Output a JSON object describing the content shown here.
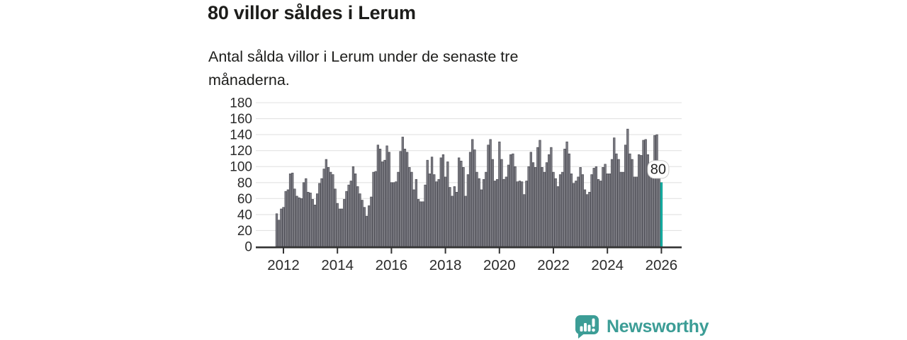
{
  "title": "80 villor såldes i Lerum",
  "subtitle": "Antal sålda villor i Lerum under de senaste tre månaderna.",
  "branding": {
    "name": "Newsworthy",
    "icon": "bar-chart-speech-bubble-icon"
  },
  "colors": {
    "bar": "#7d7d84",
    "bar_stroke": "#4c4c54",
    "highlight": "#14b2a6",
    "highlight_stroke": "#0d948a",
    "axis": "#333333",
    "grid": "#e2e2e2",
    "title_text": "#1d1d1b",
    "tick_text": "#2b2b2b",
    "brand": "#3c9d96",
    "annotation_bg": "#ffffff",
    "annotation_border": "#cccccc",
    "annotation_text": "#222222"
  },
  "annotation": {
    "label": "80"
  },
  "chart_data": {
    "type": "bar",
    "title": "80 villor såldes i Lerum",
    "subtitle": "Antal sålda villor i Lerum under de senaste tre månaderna.",
    "xlabel": "",
    "ylabel": "",
    "frequency": "monthly",
    "x_start": "2011-10",
    "x_end": "2026-01",
    "ylim": [
      0,
      180
    ],
    "y_ticks": [
      0,
      20,
      40,
      60,
      80,
      100,
      120,
      140,
      160,
      180
    ],
    "x_tick_years": [
      2012,
      2014,
      2016,
      2018,
      2020,
      2022,
      2024,
      2026
    ],
    "grid": "horizontal",
    "legend": "none",
    "values": [
      41,
      33,
      47,
      49,
      69,
      71,
      91,
      92,
      72,
      63,
      61,
      60,
      80,
      85,
      68,
      67,
      59,
      52,
      66,
      79,
      85,
      97,
      109,
      99,
      93,
      90,
      72,
      54,
      47,
      47,
      59,
      69,
      77,
      82,
      100,
      91,
      75,
      66,
      58,
      49,
      38,
      51,
      62,
      93,
      94,
      127,
      122,
      106,
      108,
      126,
      118,
      80,
      80,
      81,
      93,
      119,
      137,
      122,
      118,
      99,
      93,
      71,
      84,
      59,
      56,
      56,
      77,
      108,
      91,
      112,
      90,
      81,
      84,
      111,
      115,
      87,
      106,
      74,
      63,
      75,
      68,
      111,
      107,
      99,
      63,
      90,
      118,
      134,
      121,
      93,
      85,
      71,
      84,
      93,
      127,
      134,
      109,
      82,
      84,
      131,
      109,
      84,
      87,
      102,
      115,
      116,
      100,
      81,
      82,
      81,
      65,
      82,
      100,
      118,
      105,
      99,
      124,
      133,
      99,
      93,
      105,
      115,
      124,
      93,
      85,
      75,
      90,
      93,
      122,
      131,
      116,
      91,
      79,
      82,
      87,
      99,
      90,
      71,
      65,
      68,
      90,
      98,
      100,
      84,
      82,
      99,
      103,
      91,
      91,
      109,
      136,
      116,
      109,
      93,
      93,
      127,
      147,
      116,
      109,
      87,
      87,
      115,
      114,
      133,
      134,
      115,
      93,
      91,
      139,
      140,
      88,
      80
    ],
    "highlight": {
      "index": 171,
      "value": 80,
      "label": "80"
    }
  }
}
